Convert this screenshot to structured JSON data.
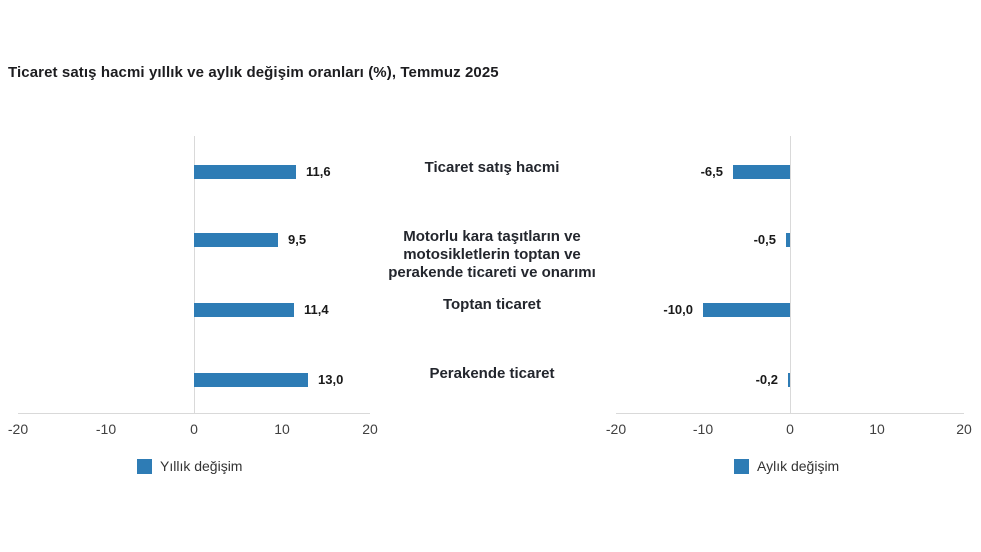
{
  "title": "Ticaret satış hacmi yıllık ve aylık değişim oranları (%), Temmuz 2025",
  "colors": {
    "bar": "#2e7cb5",
    "axis_line": "#d9d9d9",
    "value_text": "#1a1a1a",
    "tick_text": "#404040",
    "category_text": "#23262d"
  },
  "chart_data": [
    {
      "type": "bar",
      "orientation": "horizontal",
      "panel": "left",
      "legend": "Yıllık değişim",
      "categories": [
        "Ticaret satış hacmi",
        "Motorlu kara taşıtların ve motosikletlerin toptan ve perakende ticareti ve onarımı",
        "Toptan ticaret",
        "Perakende ticaret"
      ],
      "values": [
        11.6,
        9.5,
        11.4,
        13.0
      ],
      "value_labels": [
        "11,6",
        "9,5",
        "11,4",
        "13,0"
      ],
      "xlim": [
        -20,
        20
      ],
      "tick_values": [
        -20,
        -10,
        0,
        10,
        20
      ],
      "tick_labels": [
        "-20",
        "-10",
        "0",
        "10",
        "20"
      ],
      "grid": false,
      "legend_position": "bottom"
    },
    {
      "type": "bar",
      "orientation": "horizontal",
      "panel": "right",
      "legend": "Aylık değişim",
      "categories": [
        "Ticaret satış hacmi",
        "Motorlu kara taşıtların ve motosikletlerin toptan ve perakende ticareti ve onarımı",
        "Toptan ticaret",
        "Perakende ticaret"
      ],
      "values": [
        -6.5,
        -0.5,
        -10.0,
        -0.2
      ],
      "value_labels": [
        "-6,5",
        "-0,5",
        "-10,0",
        "-0,2"
      ],
      "xlim": [
        -20,
        20
      ],
      "tick_values": [
        -20,
        -10,
        0,
        10,
        20
      ],
      "tick_labels": [
        "-20",
        "-10",
        "0",
        "10",
        "20"
      ],
      "grid": false,
      "legend_position": "bottom"
    }
  ],
  "center_labels": [
    "Ticaret satış hacmi",
    "Motorlu kara taşıtların ve motosikletlerin toptan ve perakende ticareti ve onarımı",
    "Toptan ticaret",
    "Perakende ticaret"
  ]
}
